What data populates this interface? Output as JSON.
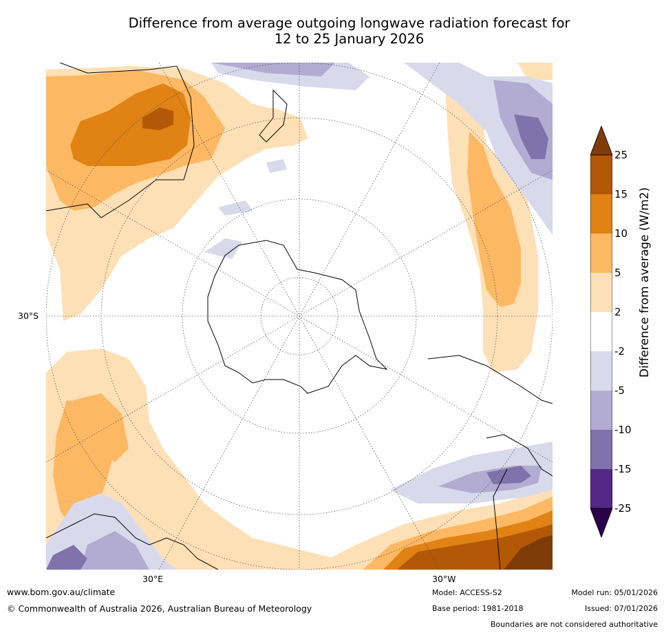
{
  "title": {
    "line1": "Difference from average outgoing longwave radiation forecast for",
    "line2": "12 to 25 January 2026"
  },
  "map": {
    "projection": "south-polar-stereographic",
    "lat_labels": [
      "30°S"
    ],
    "lon_labels": [
      "30°E",
      "30°W"
    ]
  },
  "colorbar": {
    "label": "Difference from average (W/m2)",
    "ticks": [
      "25",
      "15",
      "10",
      "5",
      "2",
      "-2",
      "-5",
      "-10",
      "-15",
      "-25"
    ],
    "colors": {
      "over": "#7f3b08",
      "c15_25": "#b35806",
      "c10_15": "#e08214",
      "c5_10": "#fdb863",
      "c2_5": "#fee0b6",
      "neutral": "#ffffff",
      "m2_5": "#d8daeb",
      "m5_10": "#b2abd2",
      "m10_15": "#8073ac",
      "m15_25": "#542788",
      "under": "#2d004b"
    }
  },
  "footer": {
    "website": "www.bom.gov.au/climate",
    "copyright": "© Commonwealth of Australia 2026, Australian Bureau of Meteorology",
    "model": "Model: ACCESS-S2",
    "base_period": "Base period: 1981-2018",
    "model_run": "Model run: 05/01/2026",
    "issued": "Issued: 07/01/2026",
    "disclaimer": "Boundaries are not considered authoritative"
  }
}
